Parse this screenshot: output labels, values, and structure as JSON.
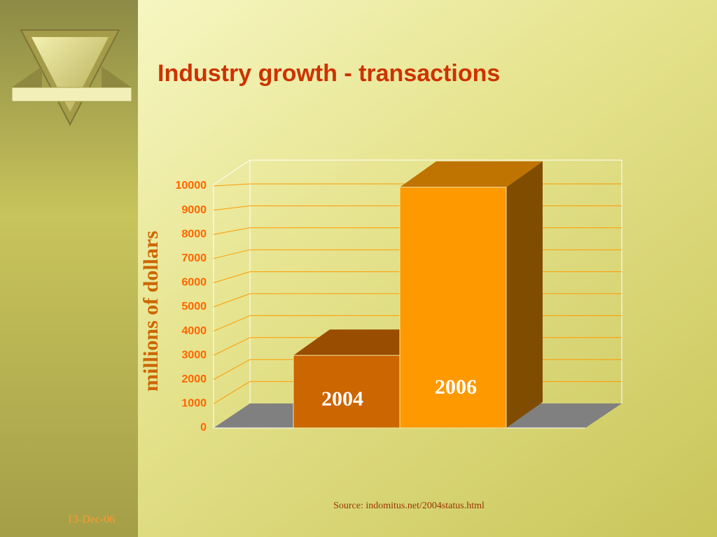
{
  "chart_data": {
    "type": "bar3d",
    "title": "Industry growth  - transactions",
    "y_label": "millions  of dollars",
    "categories": [
      "2004",
      "2006"
    ],
    "values": [
      3000,
      9950
    ],
    "colors": [
      "#cc6600",
      "#ff9900"
    ],
    "ylim": [
      0,
      10000
    ],
    "yticks": [
      0,
      1000,
      2000,
      3000,
      4000,
      5000,
      6000,
      7000,
      8000,
      9000,
      10000
    ],
    "grid": true,
    "date": "13-Dec-06",
    "source": "Source:  indomitus.net/2004status.html"
  }
}
